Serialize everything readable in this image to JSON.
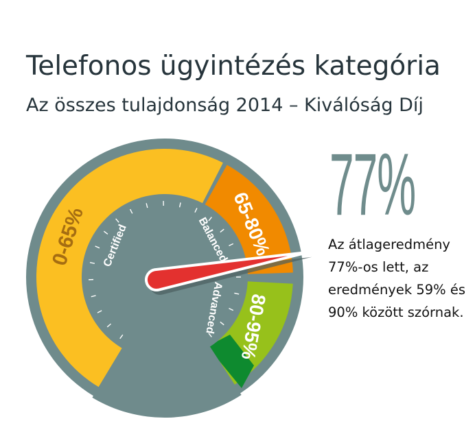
{
  "header": {
    "title": "Telefonos ügyintézés kategória",
    "subtitle": "Az összes tulajdonság 2014 – Kiválóság Díj"
  },
  "gauge": {
    "value_percent": 77,
    "segments": [
      {
        "label": "0-65%",
        "tier": "Certified",
        "color": "#fbbf22"
      },
      {
        "label": "65-80%",
        "tier": "Balanced",
        "color": "#f18a00"
      },
      {
        "label": "80-95%",
        "tier": "Advanced",
        "color": "#97c11b"
      }
    ],
    "top_tier_color": "#0e8a2f",
    "body_color": "#6f8b8c",
    "needle_color": "#e3312f"
  },
  "result": {
    "big_value": "77%",
    "description": "Az átlageredmény 77%-os lett, az eredmények 59% és 90% között szórnak."
  }
}
